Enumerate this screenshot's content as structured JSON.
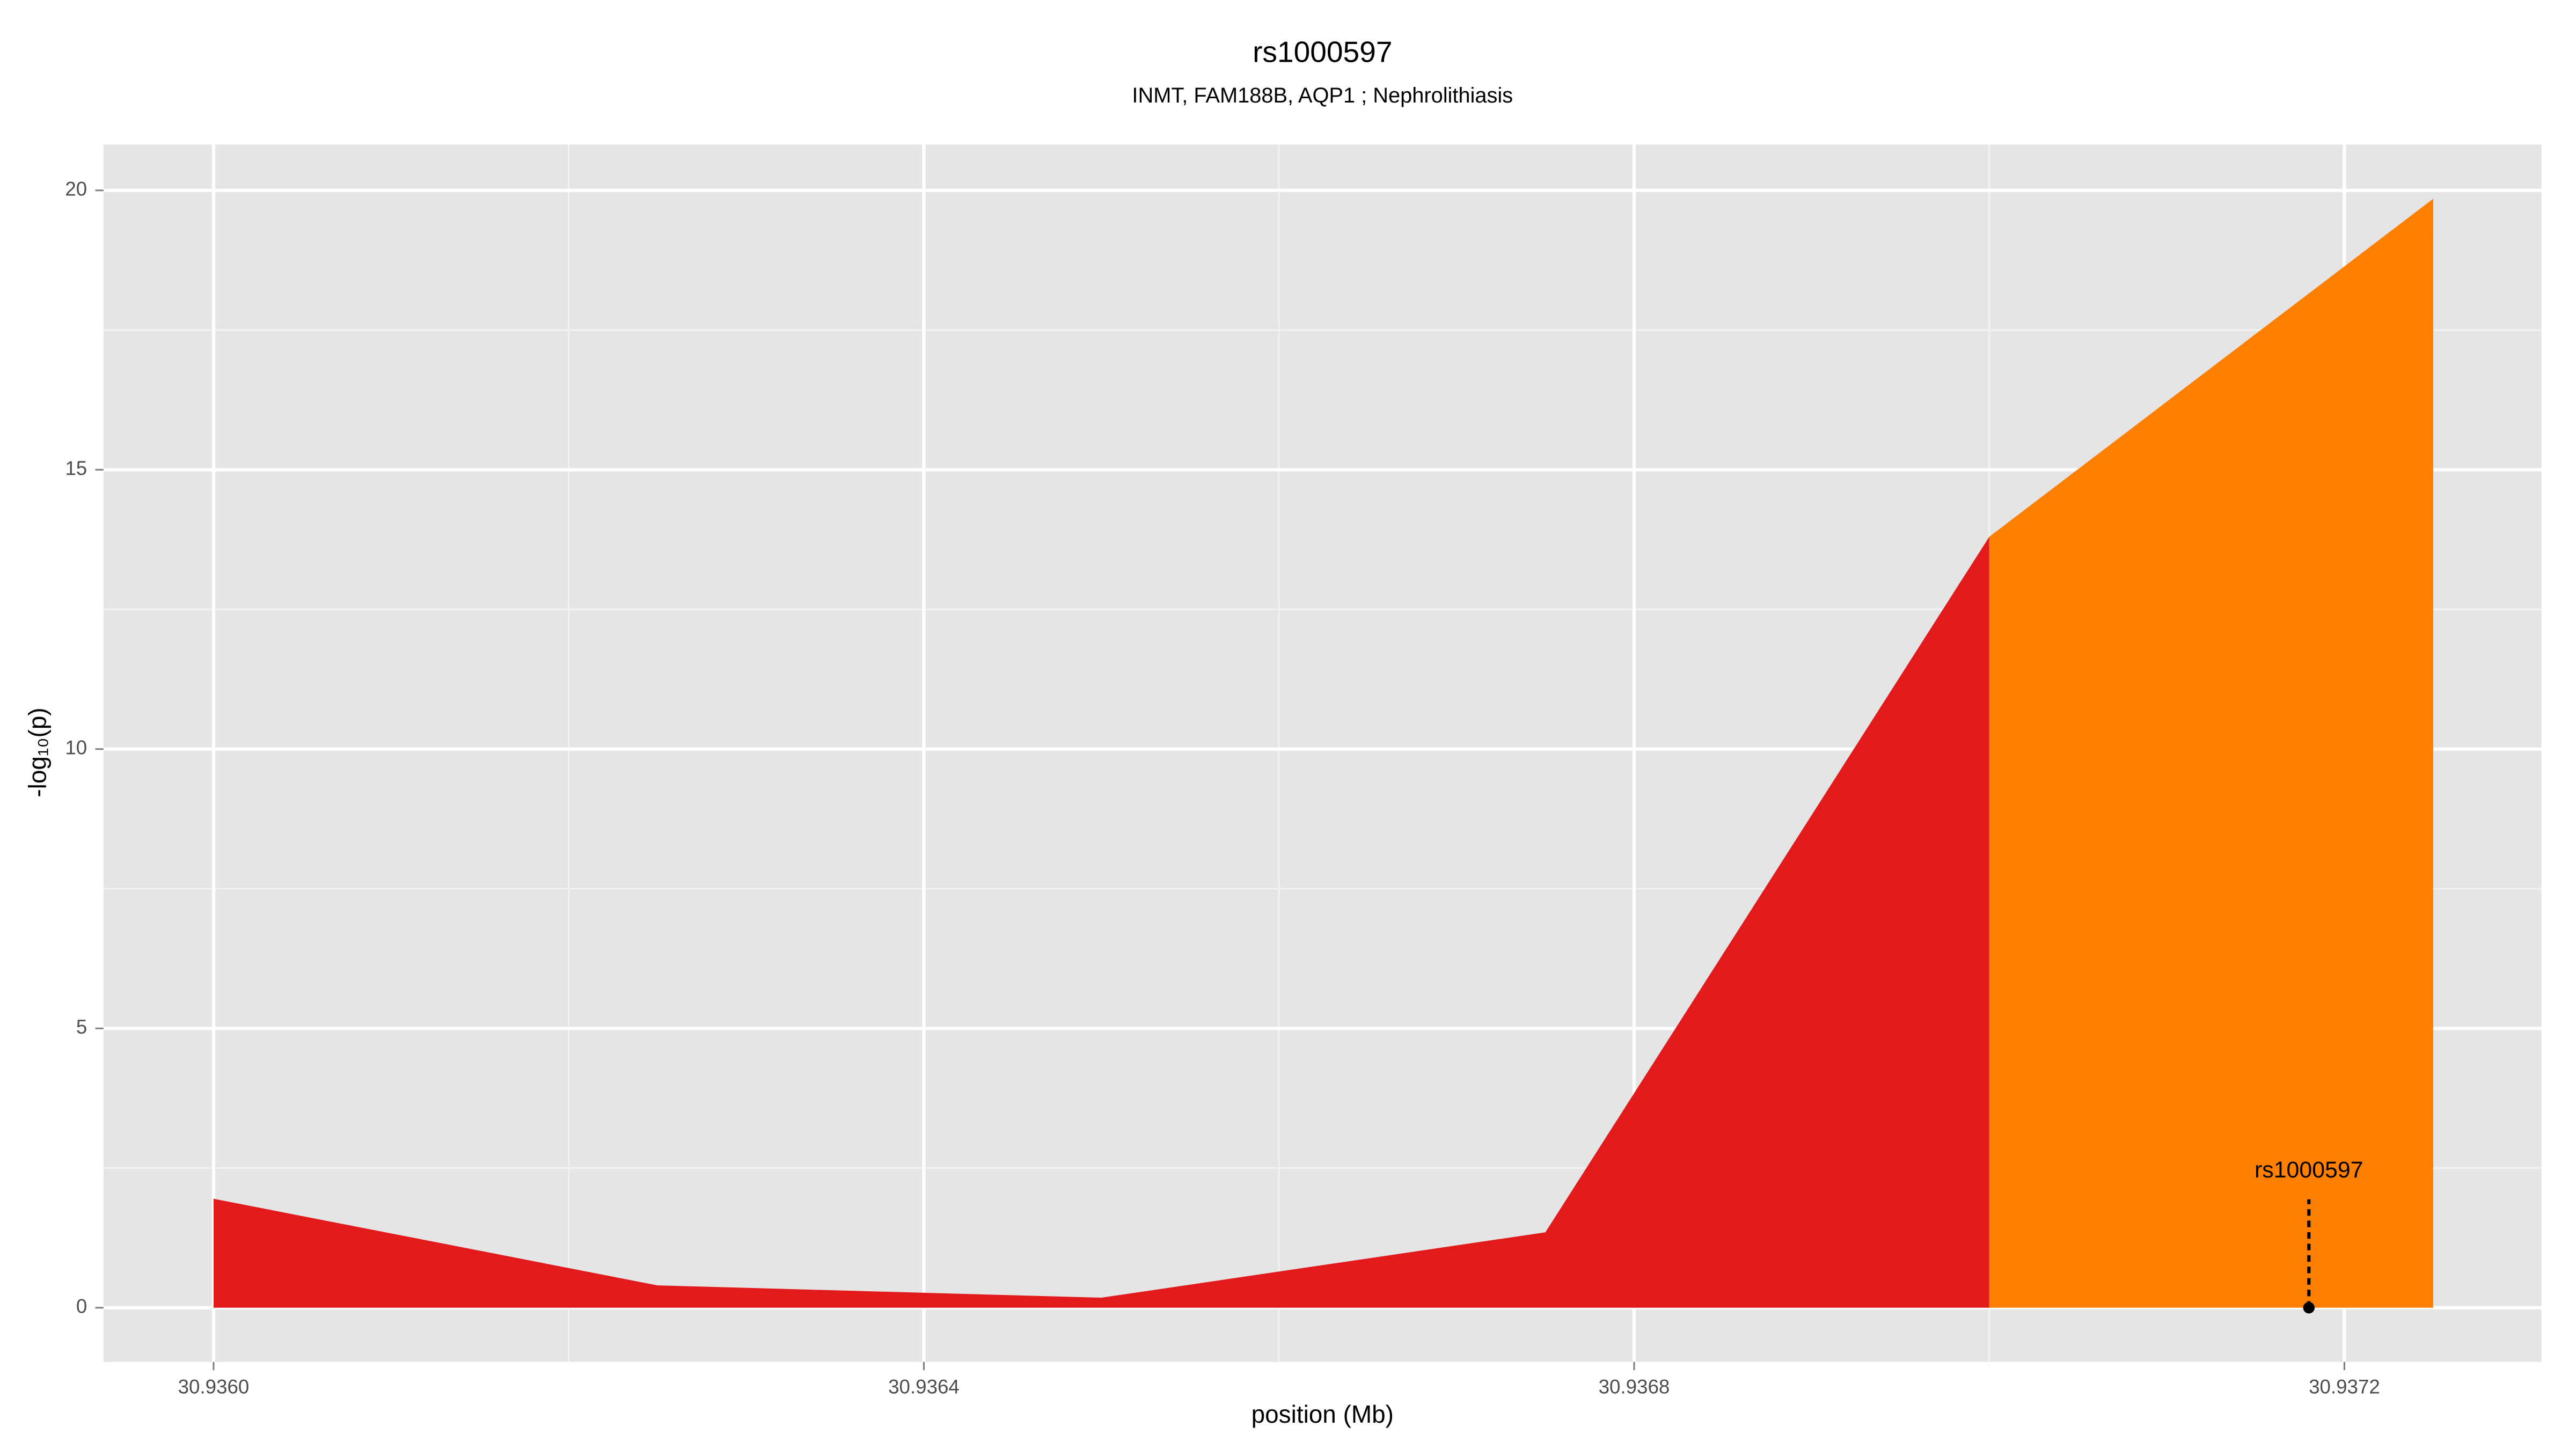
{
  "chart_data": {
    "type": "area",
    "title": "rs1000597",
    "subtitle": "INMT, FAM188B, AQP1 ; Nephrolithiasis",
    "x_label": "position (Mb)",
    "y_label": "-log₁₀(p)",
    "x": [
      30.936,
      30.93625,
      30.9365,
      30.93675,
      30.937,
      30.93725
    ],
    "series": [
      {
        "color": "#e31a1c",
        "values": [
          1.95,
          0.4,
          0.18,
          1.35,
          13.8,
          null
        ]
      },
      {
        "color": "#ff7f00",
        "values": [
          null,
          null,
          null,
          null,
          13.8,
          19.85
        ]
      }
    ],
    "xlim": [
      30.935938,
      30.937311
    ],
    "ylim": [
      -0.97,
      20.82
    ],
    "xticks": [
      {
        "value": 30.936,
        "label": "30.9360"
      },
      {
        "value": 30.9364,
        "label": "30.9364"
      },
      {
        "value": 30.9368,
        "label": "30.9368"
      },
      {
        "value": 30.9372,
        "label": "30.9372"
      }
    ],
    "yticks": [
      0,
      5,
      10,
      15,
      20
    ],
    "grid": true,
    "annotation": {
      "text": "rs1000597",
      "x": 30.93718,
      "y": 0
    }
  }
}
